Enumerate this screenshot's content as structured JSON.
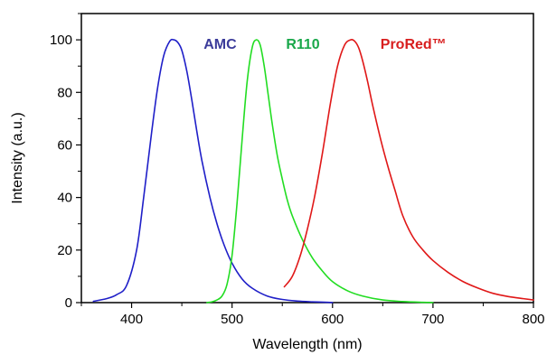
{
  "chart_data": {
    "type": "line",
    "xlabel": "Wavelength (nm)",
    "ylabel": "Intensity (a.u.)",
    "xlim": [
      350,
      800
    ],
    "ylim": [
      0,
      110
    ],
    "xticks": [
      400,
      500,
      600,
      700,
      800
    ],
    "yticks": [
      0,
      20,
      40,
      60,
      80,
      100
    ],
    "grid": false,
    "legend": "inline labels",
    "series": [
      {
        "name": "AMC",
        "color": "#1f1fc8",
        "label_color": "#3b3b9a",
        "x": [
          362,
          375,
          385,
          395,
          405,
          412,
          420,
          426,
          432,
          438,
          442,
          446,
          450,
          455,
          460,
          465,
          470,
          478,
          485,
          492,
          500,
          510,
          520,
          535,
          550,
          565,
          580,
          595,
          600
        ],
        "y": [
          0.5,
          1.5,
          3,
          6.5,
          20,
          40,
          65,
          82,
          94,
          99.5,
          100,
          99,
          96,
          88,
          77,
          65,
          54,
          40,
          30,
          22,
          15,
          9,
          5.5,
          2.5,
          1.2,
          0.6,
          0.3,
          0.1,
          0
        ]
      },
      {
        "name": "R110",
        "color": "#22dd22",
        "label_color": "#19a84a",
        "x": [
          475,
          480,
          485,
          490,
          495,
          500,
          505,
          510,
          515,
          520,
          524,
          528,
          532,
          536,
          540,
          545,
          550,
          555,
          560,
          570,
          580,
          590,
          600,
          615,
          630,
          650,
          670,
          690,
          700
        ],
        "y": [
          0,
          0.3,
          1,
          2.5,
          7,
          18,
          38,
          62,
          84,
          97,
          100,
          98,
          90,
          79,
          68,
          56,
          47,
          39,
          33,
          24,
          17,
          12,
          8,
          4.5,
          2.5,
          1,
          0.4,
          0.1,
          0
        ]
      },
      {
        "name": "ProRed™",
        "color": "#e01818",
        "label_color": "#d81e1e",
        "x": [
          552,
          560,
          568,
          575,
          582,
          590,
          598,
          605,
          612,
          618,
          622,
          626,
          630,
          635,
          640,
          648,
          655,
          662,
          670,
          680,
          690,
          700,
          715,
          730,
          745,
          760,
          775,
          790,
          800
        ],
        "y": [
          6,
          10,
          18,
          28,
          40,
          57,
          76,
          90,
          98,
          100,
          99.5,
          97,
          92,
          84,
          75,
          62,
          52,
          43,
          33,
          25,
          20,
          16,
          11.5,
          8,
          5.5,
          3.5,
          2.3,
          1.5,
          1
        ]
      }
    ]
  }
}
